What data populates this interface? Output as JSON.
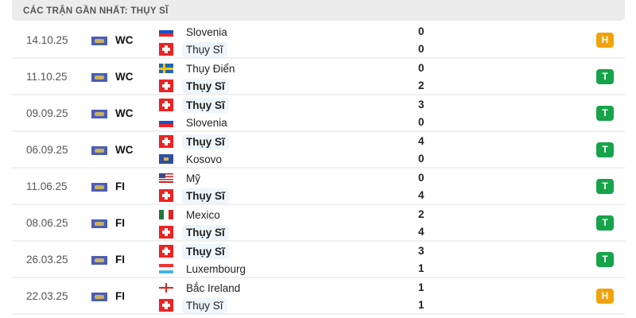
{
  "header": {
    "title": "CÁC TRẬN GẦN NHẤT: THỤY SĨ"
  },
  "colors": {
    "draw": "#f0a30a",
    "win": "#16a34a",
    "highlight": "#eef5fc"
  },
  "matches": [
    {
      "date": "14.10.25",
      "league": "WC",
      "home": {
        "name": "Slovenia",
        "flag": "svn",
        "score": "0"
      },
      "away": {
        "name": "Thụy Sĩ",
        "flag": "sui",
        "score": "0"
      },
      "result": "H"
    },
    {
      "date": "11.10.25",
      "league": "WC",
      "home": {
        "name": "Thụy Điển",
        "flag": "swe",
        "score": "0"
      },
      "away": {
        "name": "Thụy Sĩ",
        "flag": "sui",
        "score": "2"
      },
      "result": "T"
    },
    {
      "date": "09.09.25",
      "league": "WC",
      "home": {
        "name": "Thụy Sĩ",
        "flag": "sui",
        "score": "3"
      },
      "away": {
        "name": "Slovenia",
        "flag": "svn",
        "score": "0"
      },
      "result": "T"
    },
    {
      "date": "06.09.25",
      "league": "WC",
      "home": {
        "name": "Thụy Sĩ",
        "flag": "sui",
        "score": "4"
      },
      "away": {
        "name": "Kosovo",
        "flag": "kos",
        "score": "0"
      },
      "result": "T"
    },
    {
      "date": "11.06.25",
      "league": "FI",
      "home": {
        "name": "Mỹ",
        "flag": "usa",
        "score": "0"
      },
      "away": {
        "name": "Thụy Sĩ",
        "flag": "sui",
        "score": "4"
      },
      "result": "T"
    },
    {
      "date": "08.06.25",
      "league": "FI",
      "home": {
        "name": "Mexico",
        "flag": "mex",
        "score": "2"
      },
      "away": {
        "name": "Thụy Sĩ",
        "flag": "sui",
        "score": "4"
      },
      "result": "T"
    },
    {
      "date": "26.03.25",
      "league": "FI",
      "home": {
        "name": "Thụy Sĩ",
        "flag": "sui",
        "score": "3"
      },
      "away": {
        "name": "Luxembourg",
        "flag": "lux",
        "score": "1"
      },
      "result": "T"
    },
    {
      "date": "22.03.25",
      "league": "FI",
      "home": {
        "name": "Bắc Ireland",
        "flag": "nir",
        "score": "1"
      },
      "away": {
        "name": "Thụy Sĩ",
        "flag": "sui",
        "score": "1"
      },
      "result": "H"
    }
  ]
}
